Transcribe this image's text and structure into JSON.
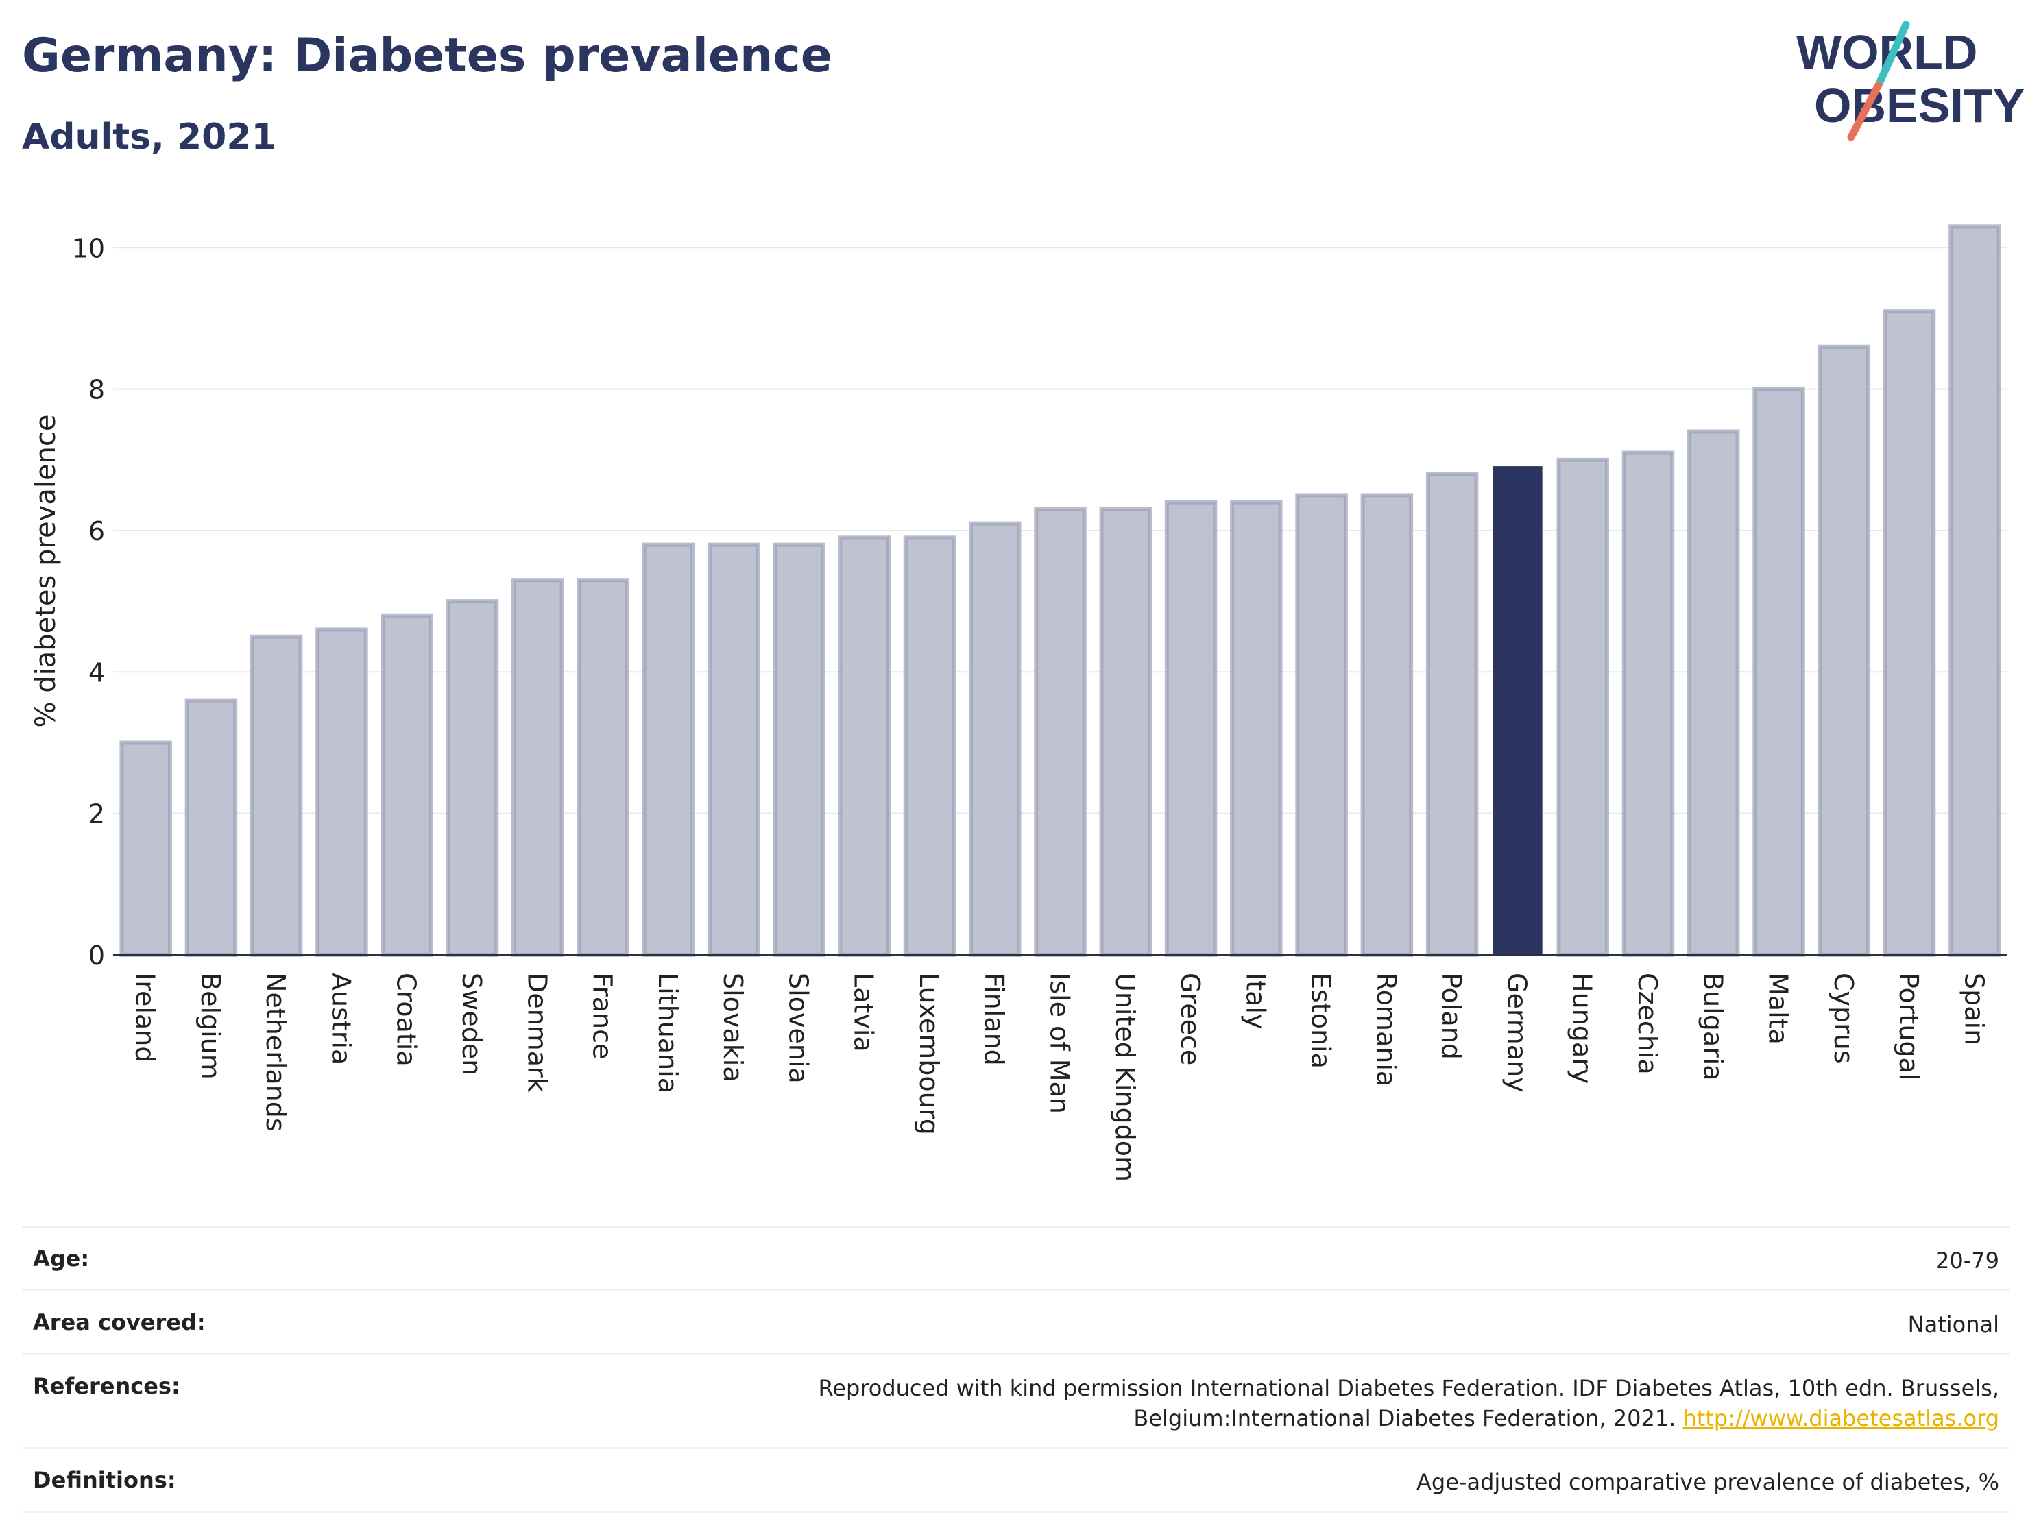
{
  "header": {
    "title": "Germany: Diabetes prevalence",
    "subtitle": "Adults, 2021",
    "logo_line1": "WORLD",
    "logo_line2": "OBESITY"
  },
  "colors": {
    "title": "#2a3560",
    "bar": "#bfc2d0",
    "bar_outline": "#9a9fb8",
    "highlight": "#2a3560",
    "link": "#e8b400",
    "logo_teal": "#3bbfc0",
    "logo_coral": "#e8705a"
  },
  "chart_data": {
    "type": "bar",
    "title": "Germany: Diabetes prevalence",
    "subtitle": "Adults, 2021",
    "xlabel": "",
    "ylabel": "% diabetes prevalence",
    "ylim": [
      0,
      10.4
    ],
    "yticks": [
      0,
      2,
      4,
      6,
      8,
      10
    ],
    "grid": true,
    "highlight": "Germany",
    "categories": [
      "Ireland",
      "Belgium",
      "Netherlands",
      "Austria",
      "Croatia",
      "Sweden",
      "Denmark",
      "France",
      "Lithuania",
      "Slovakia",
      "Slovenia",
      "Latvia",
      "Luxembourg",
      "Finland",
      "Isle of Man",
      "United Kingdom",
      "Greece",
      "Italy",
      "Estonia",
      "Romania",
      "Poland",
      "Germany",
      "Hungary",
      "Czechia",
      "Bulgaria",
      "Malta",
      "Cyprus",
      "Portugal",
      "Spain"
    ],
    "values": [
      3.0,
      3.6,
      4.5,
      4.6,
      4.8,
      5.0,
      5.3,
      5.3,
      5.8,
      5.8,
      5.8,
      5.9,
      5.9,
      6.1,
      6.3,
      6.3,
      6.4,
      6.4,
      6.5,
      6.5,
      6.8,
      6.9,
      7.0,
      7.1,
      7.4,
      8.0,
      8.6,
      9.1,
      10.3
    ]
  },
  "info": {
    "age_label": "Age:",
    "age_value": "20-79",
    "area_label": "Area covered:",
    "area_value": "National",
    "references_label": "References:",
    "references_value": "Reproduced with kind permission International Diabetes Federation.  IDF Diabetes Atlas, 10th edn. Brussels, Belgium:International Diabetes Federation, 2021.",
    "references_link": "http://www.diabetesatlas.org",
    "definitions_label": "Definitions:",
    "definitions_value": "Age-adjusted comparative prevalence of diabetes, %"
  }
}
